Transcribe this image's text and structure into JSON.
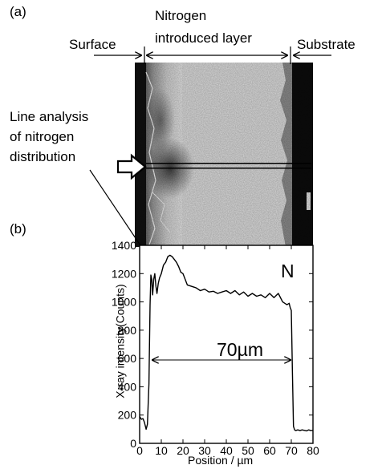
{
  "panel_a": {
    "label": "(a)",
    "annotations": {
      "surface": "Surface",
      "layer_line1": "Nitrogen",
      "layer_line2": "introduced layer",
      "substrate": "Substrate",
      "line_analysis_1": "Line analysis",
      "line_analysis_2": "of nitrogen",
      "line_analysis_3": "distribution"
    }
  },
  "panel_b": {
    "label": "(b)",
    "element_label": "N",
    "width_annotation": "70µm"
  },
  "chart_data": {
    "type": "line",
    "xlabel": "Position / µm",
    "ylabel": "X-ray intensity(Counts)",
    "xlim": [
      0,
      80
    ],
    "ylim": [
      0,
      1400
    ],
    "xticks": [
      "0",
      "10",
      "20",
      "30",
      "40",
      "50",
      "60",
      "70",
      "80"
    ],
    "yticks": [
      "0",
      "200",
      "400",
      "600",
      "800",
      "1000",
      "1200",
      "1400"
    ],
    "grid": false,
    "series": [
      {
        "color": "#000000",
        "x": [
          0,
          0.8,
          1.5,
          2.2,
          3,
          3.6,
          4.3,
          4.8,
          5.2,
          5.6,
          6,
          6.5,
          7,
          7.5,
          8,
          8.6,
          9.2,
          10,
          11,
          12,
          13,
          14,
          15,
          16,
          17,
          18,
          19,
          20,
          22,
          24,
          26,
          28,
          30,
          32,
          34,
          36,
          38,
          40,
          42,
          44,
          46,
          48,
          50,
          52,
          54,
          56,
          58,
          60,
          62,
          64,
          66,
          68,
          69,
          69.5,
          70,
          70.5,
          71,
          71.5,
          72,
          73,
          74,
          75,
          76,
          77,
          78,
          79,
          80
        ],
        "y": [
          190,
          170,
          175,
          150,
          100,
          135,
          420,
          980,
          1190,
          1160,
          1050,
          1160,
          1200,
          1110,
          1060,
          1130,
          1170,
          1200,
          1260,
          1280,
          1320,
          1330,
          1320,
          1300,
          1280,
          1250,
          1210,
          1200,
          1120,
          1110,
          1100,
          1080,
          1090,
          1070,
          1075,
          1060,
          1070,
          1080,
          1060,
          1080,
          1050,
          1070,
          1040,
          1060,
          1040,
          1050,
          1030,
          1060,
          1030,
          1060,
          1000,
          980,
          990,
          960,
          940,
          500,
          120,
          95,
          90,
          95,
          90,
          95,
          92,
          88,
          95,
          90,
          92
        ]
      }
    ]
  }
}
